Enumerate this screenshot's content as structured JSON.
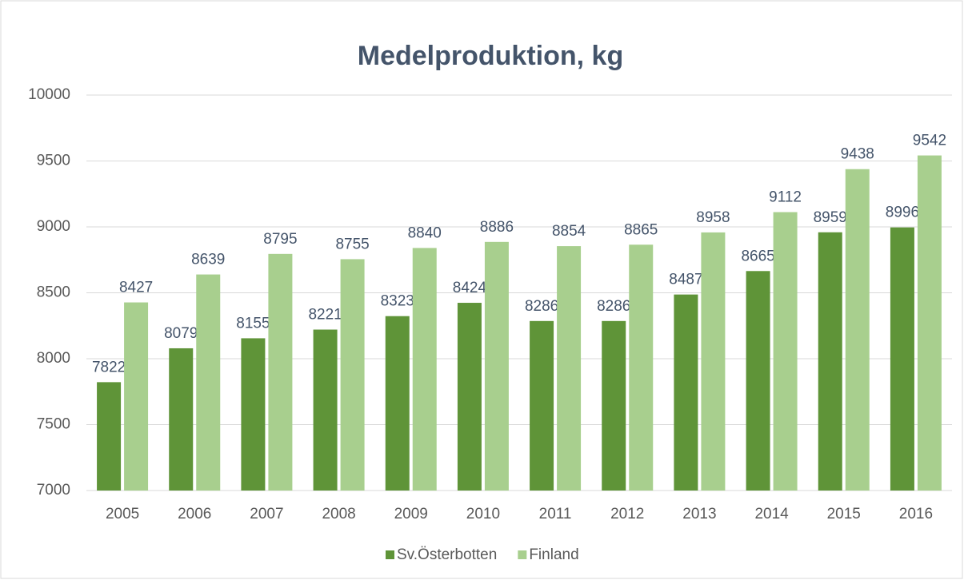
{
  "chart_data": {
    "type": "bar",
    "title": "Medelproduktion, kg",
    "categories": [
      "2005",
      "2006",
      "2007",
      "2008",
      "2009",
      "2010",
      "2011",
      "2012",
      "2013",
      "2014",
      "2015",
      "2016"
    ],
    "series": [
      {
        "name": "Sv.Österbotten",
        "color": "#5f9438",
        "values": [
          7822,
          8079,
          8155,
          8221,
          8323,
          8424,
          8286,
          8286,
          8487,
          8665,
          8959,
          8996
        ]
      },
      {
        "name": "Finland",
        "color": "#a8cf8e",
        "values": [
          8427,
          8639,
          8795,
          8755,
          8840,
          8886,
          8854,
          8865,
          8958,
          9112,
          9438,
          9542
        ]
      }
    ],
    "ylim": [
      7000,
      10000
    ],
    "yticks": [
      7000,
      7500,
      8000,
      8500,
      9000,
      9500,
      10000
    ],
    "grid": true,
    "legend": "bottom"
  }
}
